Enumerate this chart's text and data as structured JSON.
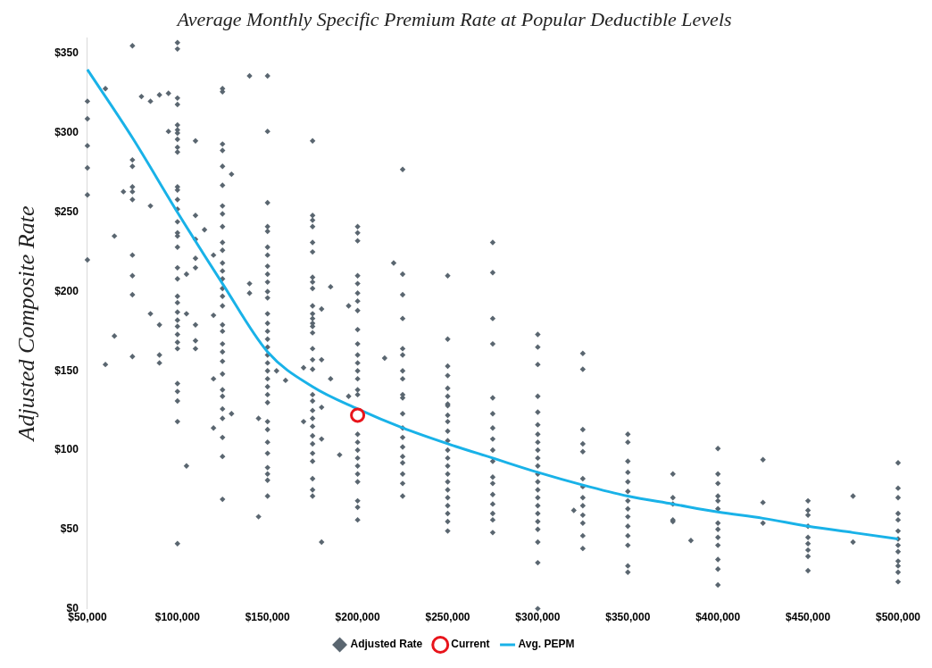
{
  "chart_data": {
    "type": "scatter",
    "title": "Average Monthly Specific Premium Rate at Popular Deductible Levels",
    "ylabel": "Adjusted Composite Rate",
    "xlim": [
      50000,
      500000
    ],
    "xticks": [
      {
        "value": 50000,
        "label": "$50,000"
      },
      {
        "value": 100000,
        "label": "$100,000"
      },
      {
        "value": 150000,
        "label": "$150,000"
      },
      {
        "value": 200000,
        "label": "$200,000"
      },
      {
        "value": 250000,
        "label": "$250,000"
      },
      {
        "value": 300000,
        "label": "$300,000"
      },
      {
        "value": 350000,
        "label": "$350,000"
      },
      {
        "value": 400000,
        "label": "$400,000"
      },
      {
        "value": 450000,
        "label": "$450,000"
      },
      {
        "value": 500000,
        "label": "$500,000"
      }
    ],
    "ylim": [
      0,
      360
    ],
    "yticks": [
      {
        "value": 0,
        "label": "$0"
      },
      {
        "value": 50,
        "label": "$50"
      },
      {
        "value": 100,
        "label": "$100"
      },
      {
        "value": 150,
        "label": "$150"
      },
      {
        "value": 200,
        "label": "$200"
      },
      {
        "value": 250,
        "label": "$250"
      },
      {
        "value": 300,
        "label": "$300"
      },
      {
        "value": 350,
        "label": "$350"
      }
    ],
    "grid": false,
    "legend": "bottom",
    "series": [
      {
        "name": "Adjusted Rate",
        "marker": "diamond",
        "color": "#5a6670",
        "x": [
          50000,
          50000,
          50000,
          50000,
          50000,
          50000,
          60000,
          60000,
          65000,
          65000,
          70000,
          75000,
          75000,
          75000,
          75000,
          75000,
          75000,
          75000,
          75000,
          75000,
          75000,
          80000,
          85000,
          85000,
          85000,
          90000,
          90000,
          90000,
          90000,
          95000,
          95000,
          100000,
          100000,
          100000,
          100000,
          100000,
          100000,
          100000,
          100000,
          100000,
          100000,
          100000,
          100000,
          100000,
          100000,
          100000,
          100000,
          100000,
          100000,
          100000,
          100000,
          100000,
          100000,
          100000,
          100000,
          100000,
          100000,
          100000,
          100000,
          100000,
          100000,
          100000,
          100000,
          100000,
          105000,
          105000,
          105000,
          110000,
          110000,
          110000,
          110000,
          110000,
          110000,
          110000,
          110000,
          115000,
          120000,
          120000,
          120000,
          120000,
          125000,
          125000,
          125000,
          125000,
          125000,
          125000,
          125000,
          125000,
          125000,
          125000,
          125000,
          125000,
          125000,
          125000,
          125000,
          125000,
          125000,
          125000,
          125000,
          125000,
          125000,
          125000,
          125000,
          125000,
          125000,
          125000,
          125000,
          125000,
          125000,
          125000,
          130000,
          130000,
          140000,
          140000,
          140000,
          145000,
          145000,
          150000,
          150000,
          150000,
          150000,
          150000,
          150000,
          150000,
          150000,
          150000,
          150000,
          150000,
          150000,
          150000,
          150000,
          150000,
          150000,
          150000,
          150000,
          150000,
          150000,
          150000,
          150000,
          150000,
          150000,
          150000,
          150000,
          150000,
          150000,
          150000,
          150000,
          150000,
          150000,
          155000,
          160000,
          170000,
          170000,
          175000,
          175000,
          175000,
          175000,
          175000,
          175000,
          175000,
          175000,
          175000,
          175000,
          175000,
          175000,
          175000,
          175000,
          175000,
          175000,
          175000,
          175000,
          175000,
          175000,
          175000,
          175000,
          175000,
          175000,
          175000,
          175000,
          175000,
          175000,
          175000,
          175000,
          180000,
          180000,
          180000,
          180000,
          180000,
          185000,
          185000,
          190000,
          195000,
          195000,
          200000,
          200000,
          200000,
          200000,
          200000,
          200000,
          200000,
          200000,
          200000,
          200000,
          200000,
          200000,
          200000,
          200000,
          200000,
          200000,
          200000,
          200000,
          200000,
          200000,
          200000,
          200000,
          200000,
          200000,
          200000,
          200000,
          215000,
          220000,
          225000,
          225000,
          225000,
          225000,
          225000,
          225000,
          225000,
          225000,
          225000,
          225000,
          225000,
          225000,
          225000,
          225000,
          225000,
          225000,
          225000,
          225000,
          225000,
          250000,
          250000,
          250000,
          250000,
          250000,
          250000,
          250000,
          250000,
          250000,
          250000,
          250000,
          250000,
          250000,
          250000,
          250000,
          250000,
          250000,
          250000,
          250000,
          250000,
          250000,
          250000,
          250000,
          275000,
          275000,
          275000,
          275000,
          275000,
          275000,
          275000,
          275000,
          275000,
          275000,
          275000,
          275000,
          275000,
          275000,
          275000,
          275000,
          275000,
          300000,
          300000,
          300000,
          300000,
          300000,
          300000,
          300000,
          300000,
          300000,
          300000,
          300000,
          300000,
          300000,
          300000,
          300000,
          300000,
          300000,
          300000,
          300000,
          300000,
          300000,
          300000,
          320000,
          325000,
          325000,
          325000,
          325000,
          325000,
          325000,
          325000,
          325000,
          325000,
          325000,
          325000,
          325000,
          325000,
          350000,
          350000,
          350000,
          350000,
          350000,
          350000,
          350000,
          350000,
          350000,
          350000,
          350000,
          350000,
          350000,
          350000,
          375000,
          375000,
          375000,
          375000,
          375000,
          385000,
          400000,
          400000,
          400000,
          400000,
          400000,
          400000,
          400000,
          400000,
          400000,
          400000,
          400000,
          400000,
          400000,
          425000,
          425000,
          425000,
          450000,
          450000,
          450000,
          450000,
          450000,
          450000,
          450000,
          450000,
          450000,
          475000,
          475000,
          500000,
          500000,
          500000,
          500000,
          500000,
          500000,
          500000,
          500000,
          500000,
          500000,
          500000,
          500000,
          500000
        ],
        "values": [
          320,
          309,
          292,
          278,
          261,
          220,
          328,
          154,
          235,
          172,
          263,
          355,
          283,
          279,
          266,
          263,
          258,
          223,
          210,
          198,
          159,
          323,
          320,
          254,
          186,
          324,
          179,
          160,
          155,
          325,
          301,
          357,
          353,
          322,
          318,
          305,
          302,
          300,
          296,
          291,
          288,
          266,
          264,
          258,
          252,
          244,
          237,
          235,
          228,
          215,
          208,
          197,
          193,
          187,
          182,
          178,
          173,
          168,
          164,
          142,
          137,
          131,
          118,
          41,
          211,
          186,
          90,
          295,
          248,
          233,
          221,
          215,
          179,
          169,
          164,
          239,
          223,
          185,
          145,
          114,
          328,
          326,
          293,
          289,
          279,
          267,
          254,
          249,
          241,
          231,
          226,
          218,
          213,
          208,
          202,
          197,
          191,
          179,
          175,
          167,
          162,
          156,
          148,
          138,
          134,
          126,
          120,
          108,
          96,
          69,
          274,
          123,
          336,
          205,
          199,
          120,
          58,
          336,
          301,
          256,
          241,
          238,
          228,
          223,
          216,
          211,
          206,
          200,
          196,
          186,
          180,
          175,
          170,
          165,
          160,
          155,
          150,
          145,
          140,
          135,
          130,
          118,
          113,
          105,
          98,
          89,
          85,
          81,
          71,
          150,
          144,
          152,
          118,
          295,
          248,
          245,
          241,
          231,
          225,
          209,
          206,
          202,
          191,
          186,
          183,
          180,
          178,
          174,
          164,
          157,
          151,
          135,
          131,
          125,
          120,
          115,
          109,
          104,
          98,
          93,
          82,
          75,
          71,
          189,
          157,
          127,
          107,
          42,
          203,
          145,
          97,
          191,
          134,
          241,
          237,
          232,
          210,
          205,
          199,
          194,
          188,
          176,
          167,
          160,
          155,
          150,
          145,
          138,
          135,
          110,
          105,
          100,
          95,
          90,
          85,
          80,
          68,
          64,
          56,
          158,
          218,
          277,
          211,
          198,
          183,
          164,
          160,
          150,
          145,
          135,
          133,
          123,
          114,
          108,
          102,
          96,
          92,
          85,
          79,
          71,
          210,
          170,
          153,
          147,
          139,
          134,
          129,
          128,
          122,
          118,
          112,
          106,
          100,
          95,
          90,
          85,
          80,
          75,
          70,
          65,
          60,
          55,
          49,
          231,
          212,
          183,
          167,
          133,
          123,
          114,
          107,
          100,
          93,
          83,
          79,
          72,
          66,
          60,
          56,
          48,
          173,
          165,
          154,
          134,
          124,
          116,
          110,
          105,
          100,
          95,
          90,
          85,
          80,
          75,
          70,
          65,
          60,
          55,
          50,
          42,
          29,
          0,
          62,
          161,
          151,
          113,
          104,
          99,
          82,
          77,
          70,
          65,
          59,
          54,
          46,
          38,
          110,
          105,
          93,
          86,
          80,
          74,
          68,
          63,
          58,
          52,
          46,
          40,
          27,
          23,
          85,
          70,
          66,
          56,
          55,
          43,
          101,
          85,
          79,
          71,
          68,
          63,
          54,
          50,
          45,
          40,
          31,
          25,
          15,
          94,
          67,
          54,
          68,
          62,
          59,
          52,
          45,
          41,
          37,
          33,
          24,
          71,
          42,
          92,
          76,
          70,
          60,
          56,
          49,
          44,
          40,
          36,
          30,
          27,
          23,
          17
        ]
      },
      {
        "name": "Current",
        "marker": "circle",
        "color": "#e8141b",
        "x": [
          200000
        ],
        "values": [
          122
        ]
      },
      {
        "name": "Avg. PEPM",
        "type": "line",
        "marker": "none",
        "color": "#19b2e8",
        "x": [
          50000,
          75000,
          100000,
          125000,
          150000,
          175000,
          200000,
          225000,
          250000,
          275000,
          300000,
          325000,
          350000,
          375000,
          400000,
          425000,
          450000,
          475000,
          500000
        ],
        "values": [
          340,
          297,
          250,
          205,
          162,
          140,
          126,
          114,
          104,
          95,
          86,
          78,
          71,
          66,
          61,
          57,
          52,
          48,
          44
        ]
      }
    ]
  }
}
